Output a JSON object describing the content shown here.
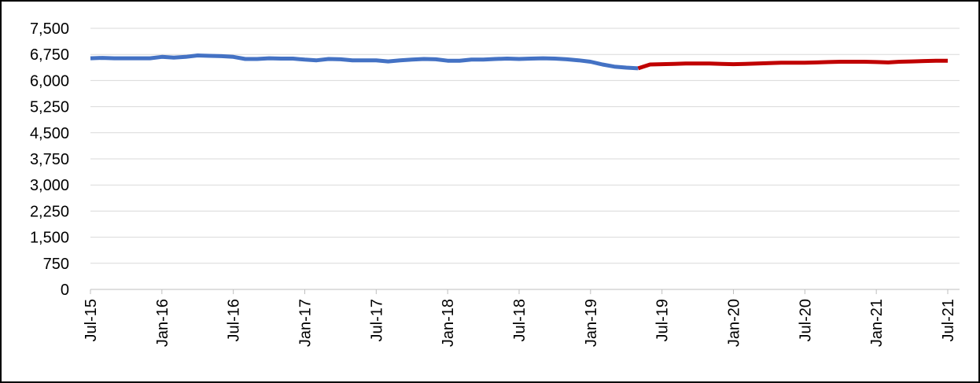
{
  "chart_data": {
    "type": "line",
    "categories": [
      "Jul-15",
      null,
      null,
      null,
      null,
      null,
      "Jan-16",
      null,
      null,
      null,
      null,
      null,
      "Jul-16",
      null,
      null,
      null,
      null,
      null,
      "Jan-17",
      null,
      null,
      null,
      null,
      null,
      "Jul-17",
      null,
      null,
      null,
      null,
      null,
      "Jan-18",
      null,
      null,
      null,
      null,
      null,
      "Jul-18",
      null,
      null,
      null,
      null,
      null,
      "Jan-19",
      null,
      null,
      null,
      null,
      null,
      "Jul-19",
      null,
      null,
      null,
      null,
      null,
      "Jan-20",
      null,
      null,
      null,
      null,
      null,
      "Jul-20",
      null,
      null,
      null,
      null,
      null,
      "Jan-21",
      null,
      null,
      null,
      null,
      null,
      "Jul-21"
    ],
    "series": [
      {
        "color": "#4472c4",
        "values": [
          6640,
          6650,
          6640,
          6640,
          6640,
          6640,
          6680,
          6660,
          6680,
          6720,
          6710,
          6700,
          6680,
          6620,
          6620,
          6640,
          6630,
          6630,
          6600,
          6580,
          6620,
          6610,
          6580,
          6580,
          6580,
          6550,
          6580,
          6600,
          6620,
          6610,
          6570,
          6570,
          6600,
          6600,
          6620,
          6630,
          6620,
          6630,
          6640,
          6630,
          6610,
          6580,
          6540,
          6460,
          6400,
          6370,
          6350,
          null,
          null,
          null,
          null,
          null,
          null,
          null,
          null,
          null,
          null,
          null,
          null,
          null,
          null,
          null,
          null,
          null,
          null,
          null,
          null,
          null,
          null,
          null,
          null,
          null,
          null
        ]
      },
      {
        "color": "#c00000",
        "values": [
          null,
          null,
          null,
          null,
          null,
          null,
          null,
          null,
          null,
          null,
          null,
          null,
          null,
          null,
          null,
          null,
          null,
          null,
          null,
          null,
          null,
          null,
          null,
          null,
          null,
          null,
          null,
          null,
          null,
          null,
          null,
          null,
          null,
          null,
          null,
          null,
          null,
          null,
          null,
          null,
          null,
          null,
          null,
          null,
          null,
          null,
          6350,
          6460,
          6470,
          6480,
          6490,
          6490,
          6490,
          6480,
          6470,
          6480,
          6490,
          6500,
          6510,
          6510,
          6510,
          6520,
          6530,
          6540,
          6540,
          6540,
          6530,
          6520,
          6540,
          6550,
          6560,
          6570,
          6570
        ]
      }
    ],
    "ylim": [
      0,
      7500
    ],
    "yticks": [
      0,
      750,
      {
        "value": 1500,
        "label": "1,500"
      },
      {
        "value": 2250,
        "label": "2,250"
      },
      {
        "value": 3000,
        "label": "3,000"
      },
      {
        "value": 3750,
        "label": "3,750"
      },
      {
        "value": 4500,
        "label": "4,500"
      },
      {
        "value": 5250,
        "label": "5,250"
      },
      {
        "value": 6000,
        "label": "6,000"
      },
      {
        "value": 6750,
        "label": "6,750"
      },
      {
        "value": 7500,
        "label": "7,500"
      }
    ],
    "grid": true
  }
}
